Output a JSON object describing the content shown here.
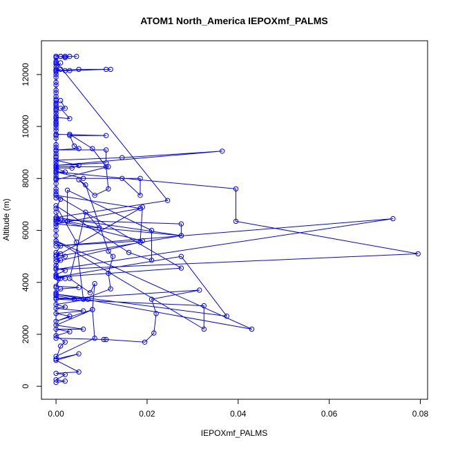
{
  "chart_data": {
    "type": "line",
    "title": "ATOM1 North_America IEPOXmf_PALMS",
    "xlabel": "IEPOXmf_PALMS",
    "ylabel": "Altitude (m)",
    "xlim": [
      -0.0032,
      0.0816
    ],
    "ylim": [
      -500,
      13300
    ],
    "x_ticks": [
      0,
      0.02,
      0.04,
      0.06,
      0.08
    ],
    "x_tick_labels": [
      "0.00",
      "0.02",
      "0.04",
      "0.06",
      "0.08"
    ],
    "y_ticks": [
      0,
      2000,
      4000,
      6000,
      8000,
      10000,
      12000
    ],
    "y_tick_labels": [
      "0",
      "2000",
      "4000",
      "6000",
      "8000",
      "10000",
      "12000"
    ],
    "grid": false,
    "legend": "none",
    "colors": {
      "series": "#0000ff",
      "axis": "#000000"
    },
    "marker": "open-circle",
    "series": [
      {
        "points": [
          [
            0.0,
            150
          ],
          [
            0.002,
            200
          ],
          [
            0.0,
            250
          ],
          [
            0.002,
            450
          ],
          [
            0.0,
            500
          ],
          [
            0.005,
            550
          ],
          [
            0.0,
            1000
          ],
          [
            0.005,
            1250
          ],
          [
            0.0,
            1050
          ],
          [
            0.001,
            1550
          ],
          [
            0.002,
            1700
          ],
          [
            0.0,
            1950
          ],
          [
            0.003,
            2100
          ],
          [
            0.0,
            2200
          ],
          [
            0.006,
            2200
          ],
          [
            0.0,
            2350
          ],
          [
            0.008,
            2950
          ],
          [
            0.0,
            2500
          ],
          [
            0.003,
            2700
          ],
          [
            0.0,
            2800
          ],
          [
            0.006,
            2900
          ],
          [
            0.0,
            3000
          ],
          [
            0.002,
            3050
          ],
          [
            0.0,
            3150
          ],
          [
            0.007,
            3350
          ],
          [
            0.0,
            3400
          ],
          [
            0.004,
            3350
          ],
          [
            0.0,
            3500
          ],
          [
            0.0,
            3550
          ],
          [
            0.0,
            3600
          ],
          [
            0.001,
            3750
          ],
          [
            0.005,
            3800
          ],
          [
            0.0,
            3850
          ],
          [
            0.001,
            4150
          ],
          [
            0.0,
            4200
          ],
          [
            0.002,
            4150
          ],
          [
            0.0,
            4250
          ],
          [
            0.0,
            4300
          ],
          [
            0.002,
            4450
          ],
          [
            0.0,
            4550
          ],
          [
            0.0,
            4650
          ],
          [
            0.001,
            4850
          ],
          [
            0.0,
            4900
          ],
          [
            0.002,
            5000
          ],
          [
            0.0,
            5050
          ],
          [
            0.001,
            5100
          ],
          [
            0.0,
            5150
          ],
          [
            0.001,
            5400
          ],
          [
            0.0,
            5500
          ],
          [
            0.0,
            5600
          ],
          [
            0.0,
            5800
          ],
          [
            0.0,
            6000
          ],
          [
            0.0,
            6150
          ],
          [
            0.0,
            6250
          ],
          [
            0.0,
            6350
          ],
          [
            0.0,
            6450
          ],
          [
            0.001,
            6400
          ],
          [
            0.0,
            6700
          ],
          [
            0.0,
            6850
          ],
          [
            0.001,
            7200
          ],
          [
            0.0,
            7250
          ],
          [
            0.0,
            7400
          ],
          [
            0.0,
            7500
          ],
          [
            0.0,
            7600
          ],
          [
            0.0,
            7800
          ],
          [
            0.0,
            7950
          ],
          [
            0.0,
            8000
          ],
          [
            0.0,
            8100
          ],
          [
            0.0,
            8200
          ],
          [
            0.0,
            8300
          ],
          [
            0.0,
            8400
          ],
          [
            0.0,
            8500
          ],
          [
            0.0,
            8600
          ],
          [
            0.0,
            8700
          ],
          [
            0.0,
            8800
          ],
          [
            0.0,
            8850
          ],
          [
            0.0,
            8950
          ],
          [
            0.0,
            9050
          ],
          [
            0.0,
            9200
          ],
          [
            0.0,
            9300
          ],
          [
            0.0,
            9550
          ],
          [
            0.0,
            9650
          ],
          [
            0.0,
            9700
          ],
          [
            0.0,
            9850
          ],
          [
            0.0,
            9950
          ],
          [
            0.0,
            10050
          ],
          [
            0.0,
            10100
          ],
          [
            0.0,
            10150
          ],
          [
            0.0,
            10200
          ],
          [
            0.0,
            10300
          ],
          [
            0.0,
            10400
          ],
          [
            0.0,
            10500
          ],
          [
            0.0,
            10600
          ],
          [
            0.0,
            10650
          ],
          [
            0.0,
            10700
          ],
          [
            0.0,
            10800
          ],
          [
            0.0,
            10850
          ],
          [
            0.0,
            10900
          ],
          [
            0.0,
            11000
          ],
          [
            0.0,
            11050
          ],
          [
            0.0,
            11150
          ],
          [
            0.0,
            11300
          ],
          [
            0.0,
            11400
          ],
          [
            0.0,
            11600
          ],
          [
            0.0,
            11700
          ],
          [
            0.0,
            11900
          ],
          [
            0.0,
            12000
          ],
          [
            0.0,
            12100
          ],
          [
            0.0,
            12150
          ],
          [
            0.0,
            12200
          ],
          [
            0.0,
            12300
          ],
          [
            0.0,
            12400
          ],
          [
            0.0,
            12450
          ],
          [
            0.0,
            12500
          ],
          [
            0.0,
            12650
          ],
          [
            0.0,
            12700
          ]
        ]
      },
      {
        "points": [
          [
            0.0,
            12700
          ],
          [
            0.001,
            12700
          ],
          [
            0.002,
            12650
          ],
          [
            0.003,
            12700
          ],
          [
            0.002,
            12700
          ],
          [
            0.0045,
            12700
          ],
          [
            0.002,
            12700
          ],
          [
            0.001,
            12700
          ],
          [
            0.0,
            12700
          ]
        ]
      },
      {
        "points": [
          [
            0.001,
            12450
          ],
          [
            0.0,
            12150
          ],
          [
            0.002,
            12150
          ],
          [
            0.0,
            12150
          ],
          [
            0.005,
            12200
          ],
          [
            0.012,
            12200
          ],
          [
            0.011,
            12200
          ],
          [
            0.003,
            12150
          ],
          [
            0.0,
            12150
          ],
          [
            0.001,
            12200
          ]
        ]
      },
      {
        "points": [
          [
            0.001,
            11000
          ],
          [
            0.002,
            10700
          ],
          [
            0.001,
            10700
          ],
          [
            0.003,
            10300
          ],
          [
            0.0,
            10350
          ],
          [
            0.0,
            9700
          ],
          [
            0.011,
            9650
          ],
          [
            0.003,
            9650
          ],
          [
            0.004,
            9250
          ],
          [
            0.005,
            9150
          ],
          [
            0.0,
            9100
          ],
          [
            0.011,
            9100
          ],
          [
            0.011,
            8600
          ],
          [
            0.0,
            8500
          ],
          [
            0.0365,
            9050
          ],
          [
            0.0145,
            8800
          ],
          [
            0.0,
            8700
          ],
          [
            0.005,
            8500
          ],
          [
            0.0035,
            8400
          ],
          [
            0.0,
            8400
          ],
          [
            0.002,
            8250
          ],
          [
            0.0,
            8250
          ],
          [
            0.006,
            8000
          ],
          [
            0.0185,
            8000
          ],
          [
            0.0185,
            7350
          ],
          [
            0.0145,
            8000
          ],
          [
            0.0,
            8000
          ],
          [
            0.0,
            7950
          ],
          [
            0.0115,
            8450
          ],
          [
            0.0,
            8450
          ],
          [
            0.0,
            8250
          ],
          [
            0.0395,
            7600
          ],
          [
            0.0395,
            6350
          ],
          [
            0.0795,
            5100
          ],
          [
            0.0,
            4500
          ],
          [
            0.074,
            6450
          ],
          [
            0.0,
            5400
          ],
          [
            0.019,
            5600
          ],
          [
            0.0,
            6400
          ],
          [
            0.0275,
            6250
          ],
          [
            0.0275,
            5800
          ],
          [
            0.0,
            6250
          ],
          [
            0.0185,
            6850
          ],
          [
            0.0,
            7350
          ],
          [
            0.0275,
            4550
          ],
          [
            0.0,
            4200
          ],
          [
            0.0275,
            5000
          ],
          [
            0.0375,
            2700
          ],
          [
            0.0,
            3550
          ],
          [
            0.043,
            2200
          ],
          [
            0.0,
            5600
          ],
          [
            0.0325,
            2200
          ],
          [
            0.0325,
            3100
          ],
          [
            0.0,
            3350
          ],
          [
            0.0315,
            3700
          ],
          [
            0.021,
            3350
          ],
          [
            0.022,
            2800
          ],
          [
            0.0215,
            2050
          ],
          [
            0.0195,
            1700
          ],
          [
            0.011,
            1800
          ],
          [
            0.0105,
            1800
          ],
          [
            0.0,
            1850
          ],
          [
            0.0,
            3800
          ],
          [
            0.0005,
            4150
          ]
        ]
      },
      {
        "points": [
          [
            0.003,
            9700
          ],
          [
            0.008,
            9150
          ],
          [
            0.011,
            8450
          ],
          [
            0.0115,
            7600
          ],
          [
            0.0085,
            7350
          ],
          [
            0.005,
            7950
          ],
          [
            0.0065,
            7750
          ],
          [
            0.0115,
            5200
          ],
          [
            0.0125,
            5000
          ],
          [
            0.0115,
            4350
          ],
          [
            0.012,
            3750
          ],
          [
            0.006,
            3350
          ],
          [
            0.0045,
            5550
          ],
          [
            0.0,
            6950
          ],
          [
            0.016,
            5150
          ],
          [
            0.021,
            4850
          ],
          [
            0.021,
            6000
          ],
          [
            0.0025,
            7550
          ],
          [
            0.0025,
            6350
          ],
          [
            0.0095,
            6100
          ],
          [
            0.0065,
            6700
          ],
          [
            0.003,
            4150
          ],
          [
            0.0075,
            3600
          ],
          [
            0.0085,
            3950
          ],
          [
            0.008,
            2950
          ],
          [
            0.0085,
            1850
          ],
          [
            0.0,
            1150
          ]
        ]
      },
      {
        "points": [
          [
            0.0,
            12500
          ],
          [
            0.0245,
            7150
          ],
          [
            0.0,
            6500
          ],
          [
            0.0275,
            5800
          ],
          [
            0.0,
            5000
          ],
          [
            0.019,
            6900
          ],
          [
            0.0185,
            5550
          ],
          [
            0.0,
            4800
          ],
          [
            0.0,
            4200
          ]
        ]
      }
    ]
  }
}
